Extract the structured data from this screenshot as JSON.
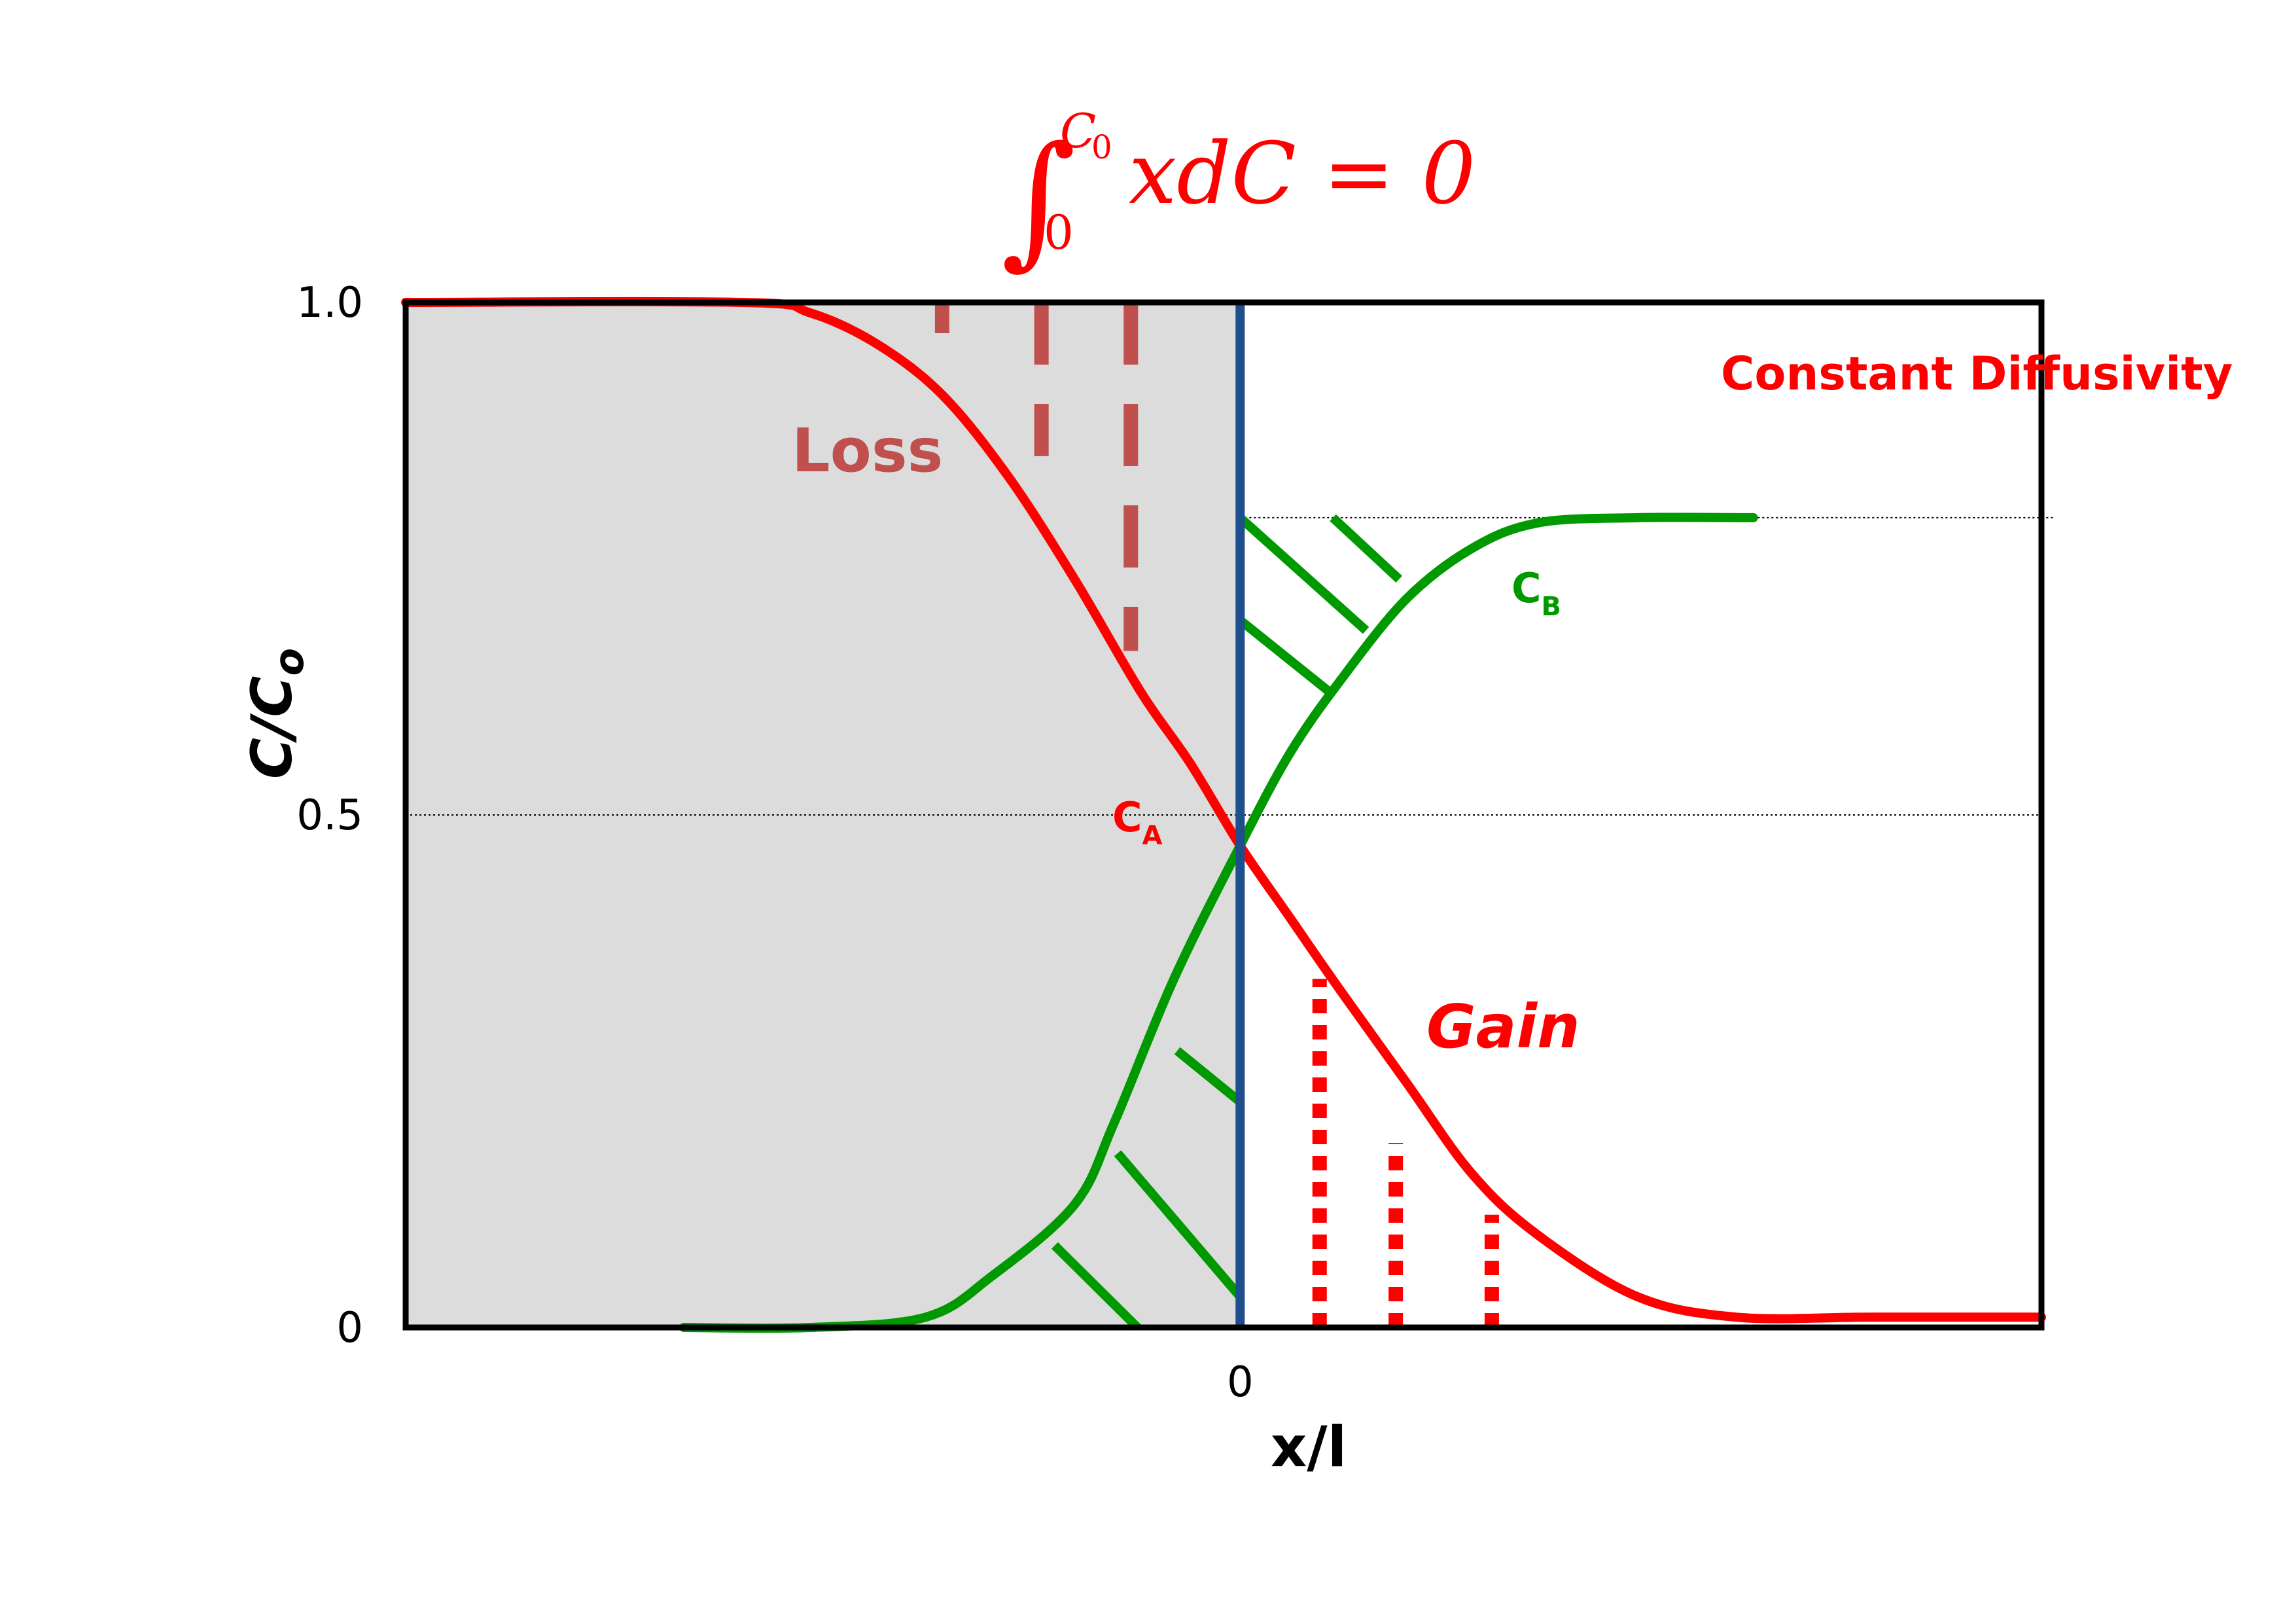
{
  "equation": {
    "integral": "∫",
    "upper_limit": "C",
    "upper_sub": "0",
    "lower_limit": "0",
    "body": "xdC = 0"
  },
  "chart_data": {
    "type": "line",
    "title": "Constant Diffusivity",
    "xlabel": "x/l",
    "ylabel": "C/C",
    "ylabel_sub": "o",
    "ylim": [
      0,
      1.0
    ],
    "y_ticks": [
      {
        "value": 0,
        "label": "0"
      },
      {
        "value": 0.5,
        "label": "0.5"
      },
      {
        "value": 1.0,
        "label": "1.0"
      }
    ],
    "x_ticks": [
      {
        "value": 0,
        "label": "0"
      }
    ],
    "xlim": [
      -2.52,
      2.42
    ],
    "grid": {
      "horizontal_dotted_at": [
        0.5,
        0.79
      ]
    },
    "shaded_region": {
      "x_from": -2.52,
      "x_to": 0,
      "color": "#dcdcdc"
    },
    "matano_plane": {
      "x": 0,
      "color": "#1f4e8c"
    },
    "series": [
      {
        "name": "C",
        "name_sub": "A",
        "color": "#ff0000",
        "x": [
          -2.52,
          -1.5,
          -1.3,
          -1.1,
          -0.9,
          -0.7,
          -0.5,
          -0.3,
          -0.15,
          0,
          0.15,
          0.3,
          0.5,
          0.7,
          0.9,
          1.2,
          1.5,
          1.9,
          2.42
        ],
        "y": [
          1.0,
          1.0,
          0.99,
          0.96,
          0.91,
          0.83,
          0.73,
          0.62,
          0.55,
          0.47,
          0.4,
          0.33,
          0.24,
          0.15,
          0.09,
          0.03,
          0.01,
          0.01,
          0.01
        ]
      },
      {
        "name": "C",
        "name_sub": "B",
        "color": "#009900",
        "x": [
          -1.68,
          -1.3,
          -0.95,
          -0.75,
          -0.5,
          -0.38,
          -0.2,
          0,
          0.15,
          0.3,
          0.5,
          0.7,
          0.9,
          1.2,
          1.55
        ],
        "y": [
          0.0,
          0.0,
          0.01,
          0.05,
          0.12,
          0.2,
          0.34,
          0.47,
          0.56,
          0.63,
          0.71,
          0.76,
          0.785,
          0.79,
          0.79
        ]
      }
    ],
    "annotations": [
      {
        "text": "Loss",
        "color": "#c0504d"
      },
      {
        "text": "Gain",
        "color": "#ff0000"
      }
    ],
    "loss_markers": {
      "color": "#c0504d",
      "x": [
        -0.9,
        -0.6,
        -0.33
      ],
      "y_bottom": [
        0.97,
        0.85,
        0.66
      ]
    },
    "gain_markers": {
      "color": "#ff0000",
      "x": [
        0.24,
        0.47,
        0.76
      ],
      "y_top": [
        0.34,
        0.18,
        0.11
      ]
    },
    "hatch_segments_upper": [
      {
        "x1": 0.0,
        "y1": 0.79,
        "x2": 0.38,
        "y2": 0.68
      },
      {
        "x1": 0.0,
        "y1": 0.69,
        "x2": 0.27,
        "y2": 0.62
      },
      {
        "x1": 0.28,
        "y1": 0.79,
        "x2": 0.48,
        "y2": 0.73
      }
    ],
    "hatch_segments_lower": [
      {
        "x1": -0.19,
        "y1": 0.27,
        "x2": 0.0,
        "y2": 0.22
      },
      {
        "x1": -0.37,
        "y1": 0.17,
        "x2": 0.0,
        "y2": 0.03
      },
      {
        "x1": -0.56,
        "y1": 0.08,
        "x2": -0.31,
        "y2": 0.0
      }
    ]
  }
}
